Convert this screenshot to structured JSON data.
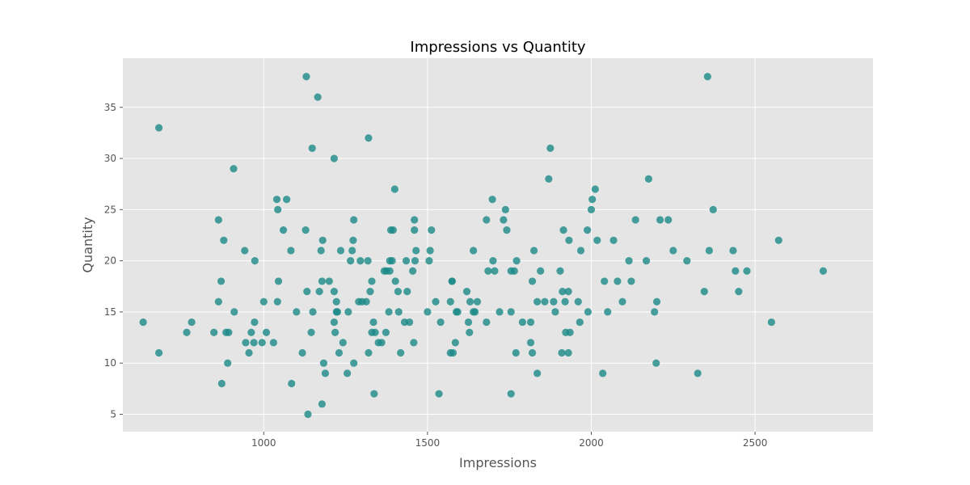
{
  "chart_data": {
    "type": "scatter",
    "title": "Impressions vs Quantity",
    "xlabel": "Impressions",
    "ylabel": "Quantity",
    "xlim": [
      570,
      2860
    ],
    "ylim": [
      3.3,
      39.8
    ],
    "xticks": [
      1000,
      1500,
      2000,
      2500
    ],
    "yticks": [
      5,
      10,
      15,
      20,
      25,
      30,
      35
    ],
    "grid": true,
    "legend": "none",
    "colors": {
      "background": "#e5e5e5",
      "point": "#1a8a87",
      "grid": "#ffffff"
    },
    "series": [
      {
        "points": [
          [
            632,
            14
          ],
          [
            680,
            33
          ],
          [
            680,
            11
          ],
          [
            765,
            13
          ],
          [
            780,
            14
          ],
          [
            848,
            13
          ],
          [
            862,
            24
          ],
          [
            862,
            16
          ],
          [
            870,
            18
          ],
          [
            872,
            8
          ],
          [
            878,
            22
          ],
          [
            885,
            13
          ],
          [
            890,
            10
          ],
          [
            893,
            13
          ],
          [
            908,
            29
          ],
          [
            910,
            15
          ],
          [
            942,
            21
          ],
          [
            945,
            12
          ],
          [
            955,
            11
          ],
          [
            962,
            13
          ],
          [
            970,
            12
          ],
          [
            972,
            14
          ],
          [
            973,
            20
          ],
          [
            995,
            12
          ],
          [
            1000,
            16
          ],
          [
            1008,
            13
          ],
          [
            1030,
            12
          ],
          [
            1040,
            26
          ],
          [
            1042,
            16
          ],
          [
            1043,
            25
          ],
          [
            1045,
            18
          ],
          [
            1060,
            23
          ],
          [
            1070,
            26
          ],
          [
            1083,
            21
          ],
          [
            1085,
            8
          ],
          [
            1100,
            15
          ],
          [
            1118,
            11
          ],
          [
            1128,
            23
          ],
          [
            1130,
            38
          ],
          [
            1132,
            17
          ],
          [
            1135,
            5
          ],
          [
            1145,
            13
          ],
          [
            1148,
            31
          ],
          [
            1150,
            15
          ],
          [
            1165,
            36
          ],
          [
            1170,
            17
          ],
          [
            1175,
            21
          ],
          [
            1178,
            18
          ],
          [
            1178,
            6
          ],
          [
            1180,
            22
          ],
          [
            1183,
            10
          ],
          [
            1188,
            9
          ],
          [
            1200,
            18
          ],
          [
            1215,
            30
          ],
          [
            1215,
            17
          ],
          [
            1215,
            14
          ],
          [
            1218,
            13
          ],
          [
            1222,
            15
          ],
          [
            1222,
            16
          ],
          [
            1225,
            15
          ],
          [
            1230,
            11
          ],
          [
            1235,
            21
          ],
          [
            1242,
            12
          ],
          [
            1255,
            9
          ],
          [
            1258,
            15
          ],
          [
            1265,
            20
          ],
          [
            1270,
            21
          ],
          [
            1273,
            22
          ],
          [
            1275,
            10
          ],
          [
            1275,
            24
          ],
          [
            1290,
            16
          ],
          [
            1295,
            20
          ],
          [
            1300,
            16
          ],
          [
            1313,
            16
          ],
          [
            1318,
            20
          ],
          [
            1320,
            11
          ],
          [
            1320,
            32
          ],
          [
            1325,
            17
          ],
          [
            1330,
            18
          ],
          [
            1330,
            13
          ],
          [
            1335,
            14
          ],
          [
            1337,
            7
          ],
          [
            1340,
            13
          ],
          [
            1350,
            12
          ],
          [
            1360,
            12
          ],
          [
            1368,
            19
          ],
          [
            1373,
            13
          ],
          [
            1375,
            19
          ],
          [
            1382,
            15
          ],
          [
            1385,
            19
          ],
          [
            1385,
            20
          ],
          [
            1388,
            23
          ],
          [
            1392,
            20
          ],
          [
            1395,
            23
          ],
          [
            1400,
            27
          ],
          [
            1402,
            18
          ],
          [
            1410,
            17
          ],
          [
            1412,
            15
          ],
          [
            1418,
            11
          ],
          [
            1430,
            14
          ],
          [
            1435,
            20
          ],
          [
            1438,
            17
          ],
          [
            1445,
            14
          ],
          [
            1455,
            19
          ],
          [
            1458,
            12
          ],
          [
            1460,
            24
          ],
          [
            1460,
            23
          ],
          [
            1462,
            20
          ],
          [
            1465,
            21
          ],
          [
            1500,
            15
          ],
          [
            1505,
            20
          ],
          [
            1508,
            21
          ],
          [
            1512,
            23
          ],
          [
            1525,
            16
          ],
          [
            1535,
            7
          ],
          [
            1540,
            14
          ],
          [
            1570,
            11
          ],
          [
            1570,
            16
          ],
          [
            1575,
            18
          ],
          [
            1575,
            18
          ],
          [
            1578,
            11
          ],
          [
            1585,
            12
          ],
          [
            1588,
            15
          ],
          [
            1592,
            15
          ],
          [
            1620,
            17
          ],
          [
            1625,
            14
          ],
          [
            1628,
            13
          ],
          [
            1630,
            16
          ],
          [
            1640,
            15
          ],
          [
            1640,
            21
          ],
          [
            1645,
            15
          ],
          [
            1652,
            16
          ],
          [
            1680,
            24
          ],
          [
            1680,
            14
          ],
          [
            1685,
            19
          ],
          [
            1698,
            26
          ],
          [
            1700,
            20
          ],
          [
            1705,
            19
          ],
          [
            1720,
            15
          ],
          [
            1732,
            24
          ],
          [
            1738,
            25
          ],
          [
            1742,
            23
          ],
          [
            1755,
            7
          ],
          [
            1755,
            15
          ],
          [
            1755,
            19
          ],
          [
            1765,
            19
          ],
          [
            1770,
            11
          ],
          [
            1772,
            20
          ],
          [
            1790,
            14
          ],
          [
            1815,
            12
          ],
          [
            1815,
            14
          ],
          [
            1820,
            11
          ],
          [
            1820,
            18
          ],
          [
            1825,
            21
          ],
          [
            1835,
            9
          ],
          [
            1835,
            16
          ],
          [
            1845,
            19
          ],
          [
            1858,
            16
          ],
          [
            1870,
            28
          ],
          [
            1875,
            31
          ],
          [
            1885,
            16
          ],
          [
            1890,
            15
          ],
          [
            1905,
            19
          ],
          [
            1910,
            11
          ],
          [
            1912,
            17
          ],
          [
            1915,
            23
          ],
          [
            1920,
            16
          ],
          [
            1922,
            13
          ],
          [
            1930,
            11
          ],
          [
            1930,
            17
          ],
          [
            1932,
            22
          ],
          [
            1935,
            13
          ],
          [
            1960,
            16
          ],
          [
            1965,
            14
          ],
          [
            1968,
            21
          ],
          [
            1988,
            23
          ],
          [
            1990,
            15
          ],
          [
            2000,
            25
          ],
          [
            2003,
            26
          ],
          [
            2012,
            27
          ],
          [
            2018,
            22
          ],
          [
            2035,
            9
          ],
          [
            2040,
            18
          ],
          [
            2050,
            15
          ],
          [
            2068,
            22
          ],
          [
            2080,
            18
          ],
          [
            2095,
            16
          ],
          [
            2115,
            20
          ],
          [
            2122,
            18
          ],
          [
            2135,
            24
          ],
          [
            2168,
            20
          ],
          [
            2175,
            28
          ],
          [
            2193,
            15
          ],
          [
            2198,
            10
          ],
          [
            2200,
            16
          ],
          [
            2210,
            24
          ],
          [
            2235,
            24
          ],
          [
            2250,
            21
          ],
          [
            2292,
            20
          ],
          [
            2325,
            9
          ],
          [
            2345,
            17
          ],
          [
            2355,
            38
          ],
          [
            2360,
            21
          ],
          [
            2372,
            25
          ],
          [
            2433,
            21
          ],
          [
            2440,
            19
          ],
          [
            2450,
            17
          ],
          [
            2475,
            19
          ],
          [
            2550,
            14
          ],
          [
            2572,
            22
          ],
          [
            2708,
            19
          ]
        ]
      }
    ]
  }
}
